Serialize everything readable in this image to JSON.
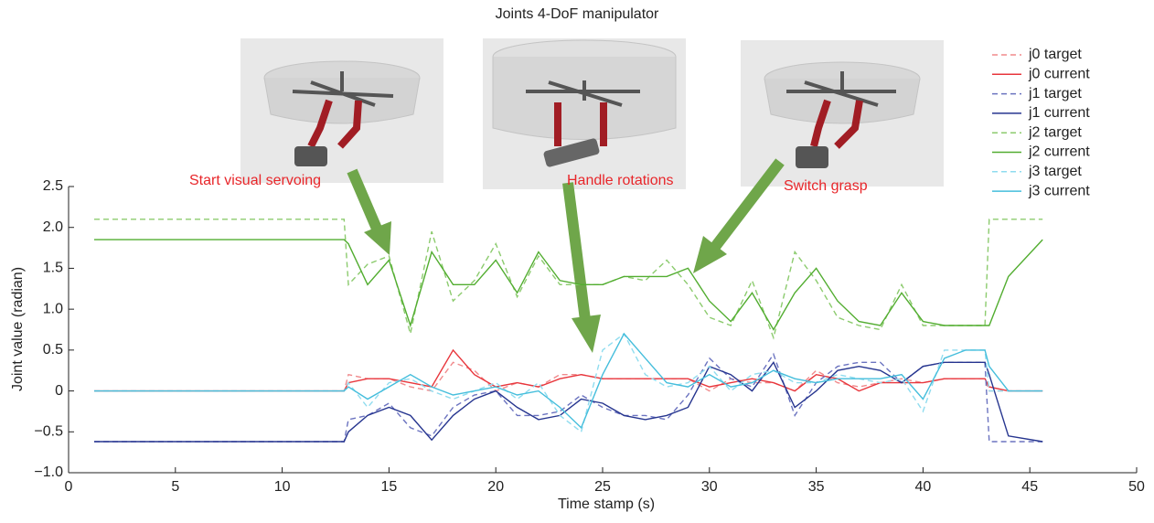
{
  "chart_data": {
    "type": "line",
    "title": "Joints 4-DoF manipulator",
    "x_label": "Time stamp (s)",
    "y_label": "Joint value (radian)",
    "annotations": [
      "Start visual servoing",
      "Handle rotations",
      "Switch grasp"
    ],
    "x": [
      1.2,
      12.9,
      13.1,
      14,
      15,
      16,
      17,
      18,
      19,
      20,
      21,
      22,
      23,
      24,
      25,
      26,
      27,
      28,
      29,
      30,
      31,
      32,
      33,
      34,
      35,
      36,
      37,
      38,
      39,
      40,
      41,
      42,
      42.9,
      43.1,
      44,
      45.6
    ],
    "series": [
      {
        "name": "j0 target",
        "color": "#f08a8c",
        "dashed": true,
        "values": [
          0,
          0,
          0.2,
          0.15,
          0.15,
          0.05,
          0.0,
          0.35,
          0.25,
          0.0,
          0.1,
          0.05,
          0.2,
          0.2,
          0.15,
          0.15,
          0.15,
          0.15,
          0.15,
          0.0,
          0.15,
          0.1,
          0.1,
          0.0,
          0.25,
          0.1,
          0.05,
          0.1,
          0.15,
          0.1,
          0.15,
          0.15,
          0.15,
          0.0,
          0,
          0
        ]
      },
      {
        "name": "j0 current",
        "color": "#e8363c",
        "dashed": false,
        "values": [
          0,
          0,
          0.1,
          0.15,
          0.15,
          0.1,
          0.05,
          0.5,
          0.2,
          0.05,
          0.1,
          0.05,
          0.15,
          0.2,
          0.15,
          0.15,
          0.15,
          0.15,
          0.15,
          0.05,
          0.1,
          0.15,
          0.1,
          0.0,
          0.2,
          0.15,
          0.0,
          0.1,
          0.1,
          0.1,
          0.15,
          0.15,
          0.15,
          0.05,
          0,
          0
        ]
      },
      {
        "name": "j1 target",
        "color": "#6b73c0",
        "dashed": true,
        "values": [
          -0.62,
          -0.62,
          -0.35,
          -0.3,
          -0.15,
          -0.45,
          -0.55,
          -0.2,
          -0.05,
          0.0,
          -0.3,
          -0.3,
          -0.25,
          -0.05,
          -0.2,
          -0.3,
          -0.3,
          -0.35,
          -0.05,
          0.4,
          0.15,
          0.05,
          0.45,
          -0.3,
          0.1,
          0.3,
          0.35,
          0.35,
          0.1,
          0.3,
          0.35,
          0.35,
          0.35,
          -0.62,
          -0.62,
          -0.62
        ]
      },
      {
        "name": "j1 current",
        "color": "#26358f",
        "dashed": false,
        "values": [
          -0.62,
          -0.62,
          -0.5,
          -0.3,
          -0.2,
          -0.3,
          -0.6,
          -0.3,
          -0.1,
          0.0,
          -0.2,
          -0.35,
          -0.3,
          -0.1,
          -0.15,
          -0.3,
          -0.35,
          -0.3,
          -0.2,
          0.3,
          0.2,
          0.0,
          0.35,
          -0.2,
          0.0,
          0.25,
          0.3,
          0.25,
          0.1,
          0.3,
          0.35,
          0.35,
          0.35,
          0.2,
          -0.55,
          -0.62
        ]
      },
      {
        "name": "j2 target",
        "color": "#8ccb6e",
        "dashed": true,
        "values": [
          2.1,
          2.1,
          1.3,
          1.55,
          1.65,
          0.7,
          1.95,
          1.1,
          1.35,
          1.8,
          1.15,
          1.65,
          1.3,
          1.3,
          1.3,
          1.4,
          1.35,
          1.6,
          1.3,
          0.9,
          0.8,
          1.35,
          0.65,
          1.7,
          1.35,
          0.9,
          0.8,
          0.75,
          1.3,
          0.8,
          0.8,
          0.8,
          0.8,
          2.1,
          2.1,
          2.1
        ]
      },
      {
        "name": "j2 current",
        "color": "#52ad30",
        "dashed": false,
        "values": [
          1.85,
          1.85,
          1.8,
          1.3,
          1.6,
          0.8,
          1.7,
          1.3,
          1.3,
          1.6,
          1.2,
          1.7,
          1.35,
          1.3,
          1.3,
          1.4,
          1.4,
          1.4,
          1.5,
          1.1,
          0.85,
          1.2,
          0.75,
          1.2,
          1.5,
          1.1,
          0.85,
          0.8,
          1.2,
          0.85,
          0.8,
          0.8,
          0.8,
          0.8,
          1.4,
          1.85
        ]
      },
      {
        "name": "j3 target",
        "color": "#8fdcef",
        "dashed": true,
        "values": [
          0,
          0,
          0.1,
          -0.2,
          0.1,
          0.15,
          0.0,
          -0.1,
          0.0,
          0.1,
          -0.1,
          0.1,
          -0.3,
          -0.5,
          0.5,
          0.7,
          0.2,
          0.05,
          0.1,
          0.3,
          0.0,
          0.2,
          0.25,
          0.1,
          0.1,
          0.2,
          0.15,
          0.1,
          0.15,
          -0.25,
          0.5,
          0.5,
          0.5,
          0.0,
          0,
          0
        ]
      },
      {
        "name": "j3 current",
        "color": "#45bedc",
        "dashed": false,
        "values": [
          0,
          0,
          0.05,
          -0.1,
          0.05,
          0.2,
          0.05,
          -0.05,
          0.0,
          0.05,
          -0.05,
          0.0,
          -0.2,
          -0.45,
          0.2,
          0.7,
          0.4,
          0.1,
          0.05,
          0.2,
          0.05,
          0.1,
          0.25,
          0.15,
          0.1,
          0.15,
          0.15,
          0.15,
          0.2,
          -0.1,
          0.4,
          0.5,
          0.5,
          0.3,
          0.0,
          0
        ]
      }
    ],
    "xlim": [
      0,
      50
    ],
    "xticks": [
      0,
      5,
      10,
      15,
      20,
      25,
      30,
      35,
      40,
      45,
      50
    ],
    "ylim": [
      -1,
      2.5
    ],
    "yticks": [
      {
        "value": -1,
        "label": "−1.0"
      },
      {
        "value": -0.5,
        "label": "−0.5"
      },
      0,
      0.5,
      {
        "value": 1,
        "label": "1.0"
      },
      1.5,
      {
        "value": 2,
        "label": "2.0"
      },
      2.5
    ],
    "grid": false,
    "legend": "upper right"
  }
}
